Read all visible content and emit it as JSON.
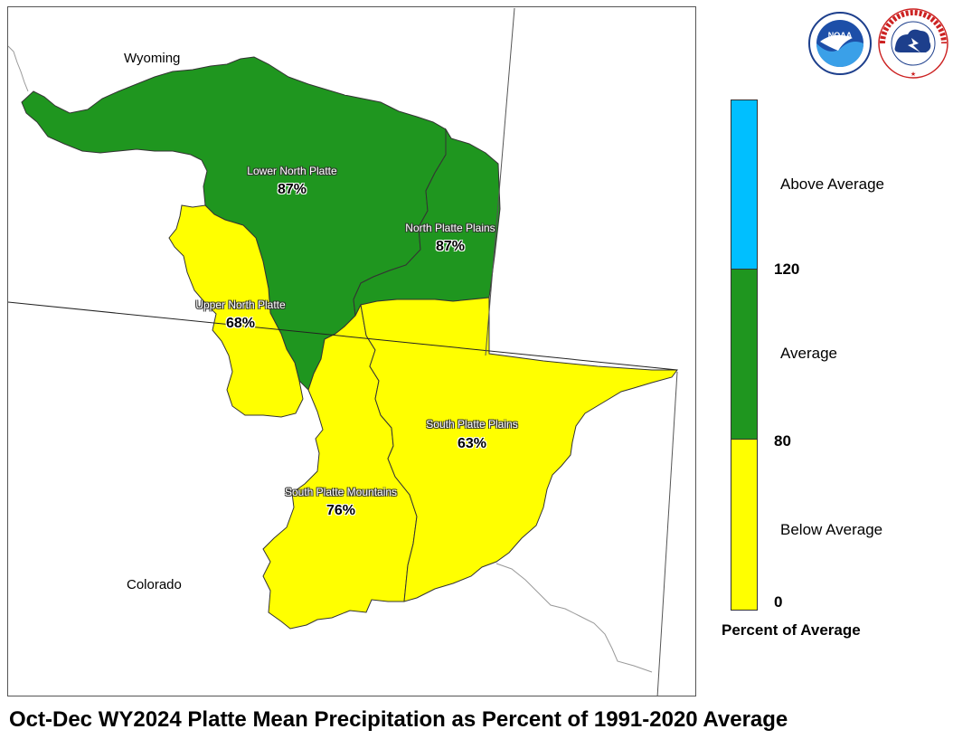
{
  "colors": {
    "below": "#ffff00",
    "average": "#1f961f",
    "above": "#00bfff"
  },
  "map": {
    "states": {
      "north": "Wyoming",
      "south": "Colorado"
    },
    "basins": [
      {
        "id": "lower-north-platte",
        "name": "Lower North Platte",
        "percent": "87%",
        "category": "Average"
      },
      {
        "id": "north-platte-plains",
        "name": "North Platte Plains",
        "percent": "87%",
        "category": "Average"
      },
      {
        "id": "upper-north-platte",
        "name": "Upper North Platte",
        "percent": "68%",
        "category": "Below Average"
      },
      {
        "id": "south-platte-plains",
        "name": "South Platte Plains",
        "percent": "63%",
        "category": "Below Average"
      },
      {
        "id": "south-platte-mountains",
        "name": "South Platte Mountains",
        "percent": "76%",
        "category": "Below Average"
      }
    ]
  },
  "legend": {
    "categories": {
      "above": "Above Average",
      "average": "Average",
      "below": "Below Average"
    },
    "ticks": {
      "t120": "120",
      "t80": "80",
      "t0": "0"
    },
    "title": "Percent of Average"
  },
  "logos": [
    "noaa-logo",
    "nws-logo"
  ],
  "caption": "Oct-Dec WY2024 Platte Mean Precipitation as Percent of 1991-2020 Average"
}
